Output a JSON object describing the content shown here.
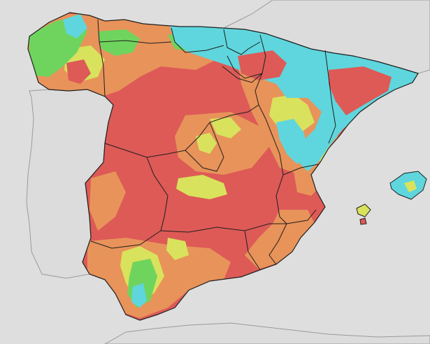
{
  "map": {
    "style": "choropleth raster of mainland Spain and the Balearic Islands with region borders",
    "background_color": "#dedede",
    "land_other_color": "#dcdcdc",
    "border_color": "#1e1e1e",
    "palette": {
      "red": "#dd5a57",
      "orange": "#e8935a",
      "yellow": "#d9e25c",
      "green": "#6fd45e",
      "cyan": "#5fd6dd"
    },
    "labels": []
  }
}
